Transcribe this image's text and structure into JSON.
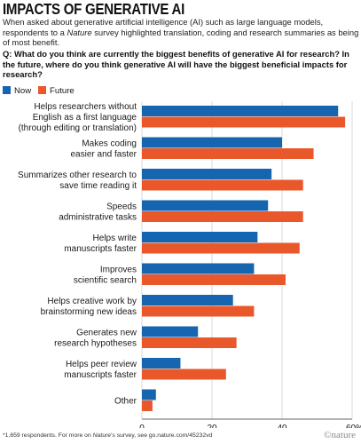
{
  "header": {
    "title": "IMPACTS OF GENERATIVE AI",
    "intro_part1": "When asked about generative artificial intelligence (AI) such as large language models, respondents to a ",
    "intro_italic": "Nature",
    "intro_part2": " survey highlighted translation, coding and research summaries as being of most benefit.",
    "question": "Q: What do you think are currently the biggest benefits of generative AI for research? In the future, where do you think generative AI will have the biggest beneficial impacts for research?"
  },
  "legend": {
    "now": "Now",
    "future": "Future"
  },
  "colors": {
    "now": "#1665b0",
    "future": "#e8582a",
    "grid": "#bfbfbf",
    "text": "#1a1a1a"
  },
  "chart_data": {
    "type": "bar",
    "orientation": "horizontal",
    "categories": [
      [
        "Helps researchers without",
        "English as a first language",
        "(through editing or translation)"
      ],
      [
        "Makes coding",
        "easier and faster"
      ],
      [
        "Summarizes other research to",
        "save time reading it"
      ],
      [
        "Speeds",
        "administrative tasks"
      ],
      [
        "Helps write",
        "manuscripts faster"
      ],
      [
        "Improves",
        "scientific search"
      ],
      [
        "Helps creative work by",
        "brainstorming new ideas"
      ],
      [
        "Generates new",
        "research hypotheses"
      ],
      [
        "Helps peer review",
        "manuscripts faster"
      ],
      [
        "Other"
      ]
    ],
    "series": [
      {
        "name": "Now",
        "values": [
          56,
          40,
          37,
          36,
          33,
          32,
          26,
          16,
          11,
          4
        ]
      },
      {
        "name": "Future",
        "values": [
          58,
          49,
          46,
          46,
          45,
          41,
          32,
          27,
          24,
          3
        ]
      }
    ],
    "xlim": [
      0,
      60
    ],
    "xticks": [
      "0",
      "20",
      "40",
      "60%"
    ],
    "tick_values": [
      0,
      20,
      40,
      60
    ],
    "grid": true,
    "legend_position": "top-left"
  },
  "footer": {
    "footnote_part1": "*1,659 respondents. For more on ",
    "footnote_italic": "Nature",
    "footnote_part2": "’s survey, see go.nature.com/45232vd",
    "brand": "©nature"
  }
}
